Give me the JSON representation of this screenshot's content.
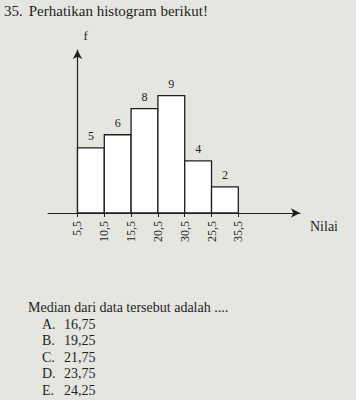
{
  "question": {
    "number": "35.",
    "text": "Perhatikan histogram berikut!",
    "prompt": "Median dari data tersebut adalah ...."
  },
  "options": [
    {
      "letter": "A.",
      "text": "16,75"
    },
    {
      "letter": "B.",
      "text": "19,25"
    },
    {
      "letter": "C.",
      "text": "21,75"
    },
    {
      "letter": "D.",
      "text": "23,75"
    },
    {
      "letter": "E.",
      "text": "24,25"
    }
  ],
  "chart_data": {
    "type": "histogram",
    "bins": [
      "5,5",
      "10,5",
      "15,5",
      "20,5",
      "30,5",
      "25,5",
      "35,5"
    ],
    "counts": [
      5,
      6,
      8,
      9,
      4,
      2
    ],
    "color": "#ffffff",
    "xlabel": "Nilai",
    "ylabel": "f",
    "ylim": [
      0,
      12.5
    ],
    "tick_labels": "x",
    "data_labels": true,
    "grid": false
  }
}
